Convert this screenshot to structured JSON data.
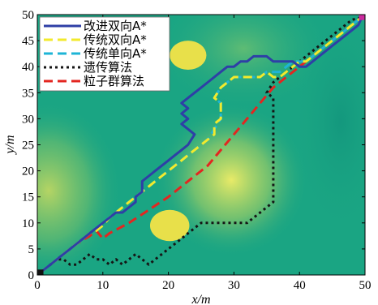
{
  "chart_data": {
    "type": "line",
    "xlabel": "x/m",
    "ylabel": "y/m",
    "xlim": [
      0,
      50
    ],
    "ylim": [
      0,
      50
    ],
    "xticks": [
      0,
      10,
      20,
      30,
      40,
      50
    ],
    "yticks": [
      0,
      5,
      10,
      15,
      20,
      25,
      30,
      35,
      40,
      45,
      50
    ],
    "grid": false,
    "legend_position": "top-left",
    "start_point": [
      0.5,
      0.5
    ],
    "goal_point": [
      49.5,
      49.5
    ],
    "colors": {
      "background_base": "#1aa583",
      "highlight": "#e9e45a",
      "obstacle": "#e8e04a",
      "start_marker": "#111111",
      "goal_marker": "#cc2a9e"
    },
    "obstacles": [
      {
        "center": [
          23,
          42.2
        ],
        "radius": 2.8
      },
      {
        "center": [
          20.2,
          9.5
        ],
        "radius": 3.0
      }
    ],
    "series": [
      {
        "name": "改进双向A*",
        "color": "#2e3fa6",
        "dash": "solid",
        "points": [
          [
            0.5,
            0.5
          ],
          [
            1,
            1
          ],
          [
            2,
            2
          ],
          [
            3,
            3
          ],
          [
            4,
            4
          ],
          [
            5,
            5
          ],
          [
            6,
            6
          ],
          [
            7,
            7
          ],
          [
            8,
            8
          ],
          [
            9,
            9
          ],
          [
            10,
            10
          ],
          [
            11,
            11
          ],
          [
            12,
            12
          ],
          [
            13,
            12
          ],
          [
            14,
            13
          ],
          [
            15,
            14
          ],
          [
            15,
            15
          ],
          [
            16,
            16
          ],
          [
            16,
            18
          ],
          [
            17,
            19
          ],
          [
            18,
            20
          ],
          [
            19,
            21
          ],
          [
            20,
            22
          ],
          [
            21,
            23
          ],
          [
            22,
            24
          ],
          [
            23,
            25
          ],
          [
            24,
            27
          ],
          [
            23,
            28
          ],
          [
            22,
            29
          ],
          [
            23,
            30
          ],
          [
            22,
            31
          ],
          [
            23,
            32
          ],
          [
            22,
            33
          ],
          [
            23,
            34
          ],
          [
            24,
            35
          ],
          [
            25,
            36
          ],
          [
            26,
            37
          ],
          [
            27,
            38
          ],
          [
            28,
            39
          ],
          [
            29,
            40
          ],
          [
            30,
            40
          ],
          [
            31,
            41
          ],
          [
            32,
            41
          ],
          [
            33,
            42
          ],
          [
            34,
            42
          ],
          [
            35,
            42
          ],
          [
            36,
            41
          ],
          [
            37,
            41
          ],
          [
            38,
            41
          ],
          [
            39,
            41
          ],
          [
            40,
            40
          ],
          [
            41,
            40
          ],
          [
            42,
            41
          ],
          [
            43,
            42
          ],
          [
            44,
            43
          ],
          [
            45,
            44
          ],
          [
            46,
            45
          ],
          [
            47,
            46
          ],
          [
            48,
            47
          ],
          [
            49,
            48
          ],
          [
            49.5,
            49.5
          ]
        ]
      },
      {
        "name": "传统双向A*",
        "color": "#f2ea2c",
        "dash": "dashed",
        "points": [
          [
            0.5,
            0.5
          ],
          [
            1,
            1
          ],
          [
            2,
            2
          ],
          [
            3,
            3
          ],
          [
            4,
            4
          ],
          [
            5,
            5
          ],
          [
            6,
            6
          ],
          [
            7,
            7
          ],
          [
            8,
            8
          ],
          [
            9,
            8.5
          ],
          [
            10,
            9.5
          ],
          [
            11,
            11
          ],
          [
            12,
            12
          ],
          [
            13,
            13
          ],
          [
            14,
            14
          ],
          [
            15,
            15
          ],
          [
            16,
            16
          ],
          [
            17,
            17
          ],
          [
            18,
            18
          ],
          [
            19,
            19
          ],
          [
            20,
            20
          ],
          [
            21,
            21
          ],
          [
            22,
            22
          ],
          [
            23,
            23
          ],
          [
            24,
            24
          ],
          [
            25,
            25
          ],
          [
            26,
            26
          ],
          [
            27,
            27
          ],
          [
            27,
            29
          ],
          [
            28,
            30
          ],
          [
            28,
            33
          ],
          [
            27,
            34
          ],
          [
            28,
            36
          ],
          [
            29,
            37
          ],
          [
            30,
            38
          ],
          [
            31,
            38
          ],
          [
            32,
            38
          ],
          [
            33,
            38
          ],
          [
            34,
            38
          ],
          [
            35,
            39
          ],
          [
            36,
            38
          ],
          [
            37,
            38
          ],
          [
            38,
            39
          ],
          [
            39,
            40
          ],
          [
            40,
            41
          ],
          [
            41,
            41
          ],
          [
            42,
            42
          ],
          [
            43,
            43
          ],
          [
            44,
            44
          ],
          [
            45,
            45
          ],
          [
            46,
            46
          ],
          [
            47,
            47
          ],
          [
            48,
            48
          ],
          [
            49,
            49
          ],
          [
            49.5,
            49.5
          ]
        ]
      },
      {
        "name": "传统单向A*",
        "color": "#1eb4d6",
        "dash": "dashed",
        "points": [
          [
            0.5,
            0.5
          ],
          [
            1,
            1
          ],
          [
            2,
            2
          ],
          [
            3,
            3
          ],
          [
            4,
            4
          ],
          [
            5,
            5
          ],
          [
            6,
            6
          ],
          [
            7,
            7
          ],
          [
            8,
            8
          ],
          [
            9,
            9
          ],
          [
            10,
            10
          ],
          [
            11,
            11
          ],
          [
            12,
            12
          ],
          [
            13,
            13
          ],
          [
            14,
            14
          ],
          [
            15,
            15
          ],
          [
            16,
            16
          ],
          [
            17,
            17
          ],
          [
            18,
            18
          ],
          [
            19,
            19
          ],
          [
            20,
            20
          ],
          [
            21,
            21
          ],
          [
            22,
            22
          ],
          [
            23,
            23
          ],
          [
            24,
            24
          ],
          [
            25,
            25
          ],
          [
            26,
            26
          ],
          [
            27,
            28
          ],
          [
            28,
            30
          ],
          [
            28,
            33
          ],
          [
            27,
            34
          ],
          [
            28,
            36
          ],
          [
            29,
            37
          ],
          [
            30,
            38
          ],
          [
            31,
            38
          ],
          [
            32,
            38
          ],
          [
            33,
            38
          ],
          [
            34,
            38
          ],
          [
            35,
            39
          ],
          [
            36,
            39
          ],
          [
            37,
            39
          ],
          [
            38,
            40
          ],
          [
            39,
            41
          ],
          [
            40,
            41
          ],
          [
            41,
            41
          ],
          [
            42,
            42
          ],
          [
            43,
            43
          ],
          [
            44,
            44
          ],
          [
            45,
            45
          ],
          [
            46,
            46
          ],
          [
            47,
            47
          ],
          [
            48,
            48
          ],
          [
            49,
            49
          ],
          [
            49.5,
            49.5
          ]
        ]
      },
      {
        "name": "遗传算法",
        "color": "#151515",
        "dash": "dotted",
        "points": [
          [
            0.5,
            0.5
          ],
          [
            1,
            1
          ],
          [
            2,
            2
          ],
          [
            3,
            3
          ],
          [
            4,
            3
          ],
          [
            5,
            2
          ],
          [
            6,
            2
          ],
          [
            7,
            3
          ],
          [
            8,
            4
          ],
          [
            9,
            3
          ],
          [
            10,
            3
          ],
          [
            11,
            2
          ],
          [
            12,
            3
          ],
          [
            13,
            2
          ],
          [
            14,
            3
          ],
          [
            15,
            4
          ],
          [
            16,
            3
          ],
          [
            17,
            2
          ],
          [
            18,
            3
          ],
          [
            19,
            4
          ],
          [
            20,
            5
          ],
          [
            21,
            6
          ],
          [
            22,
            7
          ],
          [
            23,
            8
          ],
          [
            24,
            9
          ],
          [
            25,
            10
          ],
          [
            26,
            10
          ],
          [
            27,
            10
          ],
          [
            28,
            10
          ],
          [
            29,
            10
          ],
          [
            30,
            10
          ],
          [
            31,
            10
          ],
          [
            32,
            10
          ],
          [
            33,
            11
          ],
          [
            34,
            12
          ],
          [
            35,
            13
          ],
          [
            36,
            14
          ],
          [
            36,
            16
          ],
          [
            36,
            20
          ],
          [
            36,
            25
          ],
          [
            36,
            30
          ],
          [
            36,
            33
          ],
          [
            36,
            34
          ],
          [
            35,
            35
          ],
          [
            36,
            37
          ],
          [
            37,
            38
          ],
          [
            38,
            39
          ],
          [
            39,
            40
          ],
          [
            40,
            41
          ],
          [
            41,
            42
          ],
          [
            42,
            43
          ],
          [
            43,
            44
          ],
          [
            44,
            45
          ],
          [
            45,
            46
          ],
          [
            46,
            47
          ],
          [
            47,
            48
          ],
          [
            48,
            49
          ],
          [
            49.5,
            49.5
          ]
        ]
      },
      {
        "name": "粒子群算法",
        "color": "#e32620",
        "dash": "dashed",
        "points": [
          [
            0.5,
            0.5
          ],
          [
            2,
            2
          ],
          [
            4,
            4
          ],
          [
            6,
            6
          ],
          [
            8,
            7.5
          ],
          [
            9,
            8.5
          ],
          [
            10,
            7
          ],
          [
            11,
            8
          ],
          [
            14,
            10
          ],
          [
            17,
            12.5
          ],
          [
            20,
            15
          ],
          [
            23,
            18
          ],
          [
            26,
            21
          ],
          [
            28,
            24
          ],
          [
            30,
            27
          ],
          [
            32,
            30
          ],
          [
            34,
            33
          ],
          [
            36,
            36
          ],
          [
            38,
            38
          ],
          [
            40,
            40
          ],
          [
            42,
            42
          ],
          [
            44,
            44
          ],
          [
            46,
            46
          ],
          [
            48,
            48
          ],
          [
            49.5,
            49.5
          ]
        ]
      }
    ]
  }
}
